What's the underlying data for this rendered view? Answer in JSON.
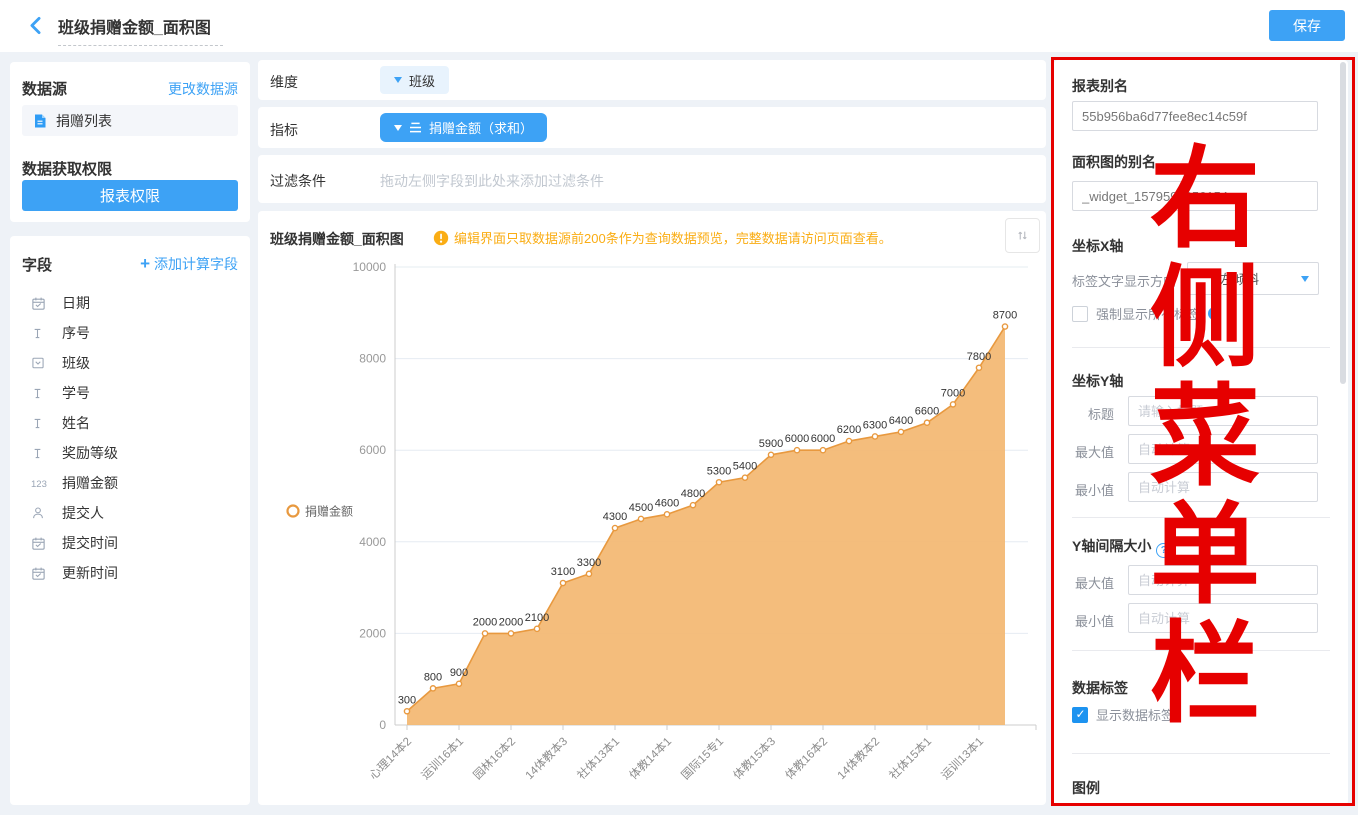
{
  "topbar": {
    "title": "班级捐赠金额_面积图",
    "save_label": "保存"
  },
  "left": {
    "datasource_title": "数据源",
    "change_link": "更改数据源",
    "datasource_item": "捐赠列表",
    "permission_title": "数据获取权限",
    "permission_button": "报表权限",
    "fields_title": "字段",
    "add_calc_field": "添加计算字段",
    "fields": [
      {
        "label": "日期",
        "icon": "calendar-icon"
      },
      {
        "label": "序号",
        "icon": "text-icon"
      },
      {
        "label": "班级",
        "icon": "select-icon"
      },
      {
        "label": "学号",
        "icon": "text-icon"
      },
      {
        "label": "姓名",
        "icon": "text-icon"
      },
      {
        "label": "奖励等级",
        "icon": "text-icon"
      },
      {
        "label": "捐赠金额",
        "icon": "number-icon"
      },
      {
        "label": "提交人",
        "icon": "person-icon"
      },
      {
        "label": "提交时间",
        "icon": "calendar-icon"
      },
      {
        "label": "更新时间",
        "icon": "calendar-icon"
      }
    ]
  },
  "config": {
    "dimension_label": "维度",
    "dimension_value": "班级",
    "metric_label": "指标",
    "metric_value": "捐赠金额（求和）",
    "filter_label": "过滤条件",
    "filter_placeholder": "拖动左侧字段到此处来添加过滤条件"
  },
  "chart": {
    "title": "班级捐赠金额_面积图",
    "warning": "编辑界面只取数据源前200条作为查询数据预览，完整数据请访问页面查看。"
  },
  "chart_data": {
    "type": "area",
    "title": "班级捐赠金额_面积图",
    "series_name": "捐赠金额",
    "values": [
      300,
      800,
      900,
      2000,
      2000,
      2100,
      3100,
      3300,
      4300,
      4500,
      4600,
      4800,
      5300,
      5400,
      5900,
      6000,
      6000,
      6200,
      6300,
      6400,
      6600,
      7000,
      7800,
      8700
    ],
    "x_labels_shown": [
      "心理14本2",
      "运训16本1",
      "园林16本2",
      "14体教本3",
      "社体13本1",
      "体教14本1",
      "国际15专1",
      "体教15本3",
      "体教16本2",
      "14体教本2",
      "社体15本1",
      "运训13本1"
    ],
    "x_label_interval": 2,
    "label_rotation": -45,
    "ylim": [
      0,
      10000
    ],
    "y_ticks": [
      0,
      2000,
      4000,
      6000,
      8000,
      10000
    ],
    "grid": true,
    "legend_position": "left",
    "show_data_labels": true,
    "area_color": "#f3b872",
    "line_color": "#e8993f",
    "label_color": "#333333"
  },
  "panel": {
    "report_alias_label": "报表别名",
    "report_alias_value": "55b956ba6d77fee8ec14c59f",
    "widget_alias_label": "面积图的别名",
    "widget_alias_value": "_widget_1579597856154",
    "xaxis_title": "坐标X轴",
    "label_direction_label": "标签文字显示方向",
    "label_direction_value": "左倾斜",
    "force_show_label": "强制显示所有标签",
    "yaxis_title": "坐标Y轴",
    "title_label": "标题",
    "title_placeholder": "请输入标题",
    "max_label": "最大值",
    "min_label": "最小值",
    "auto_placeholder": "自动计算",
    "y_interval_title": "Y轴间隔大小",
    "datalabel_title": "数据标签",
    "show_datalabel_label": "显示数据标签",
    "legend_title": "图例"
  },
  "overlay": {
    "text": "右侧菜单栏",
    "color": "#e60000"
  },
  "colors": {
    "accent": "#3da2f5",
    "warning": "#faad14",
    "annotation": "#e60000"
  }
}
